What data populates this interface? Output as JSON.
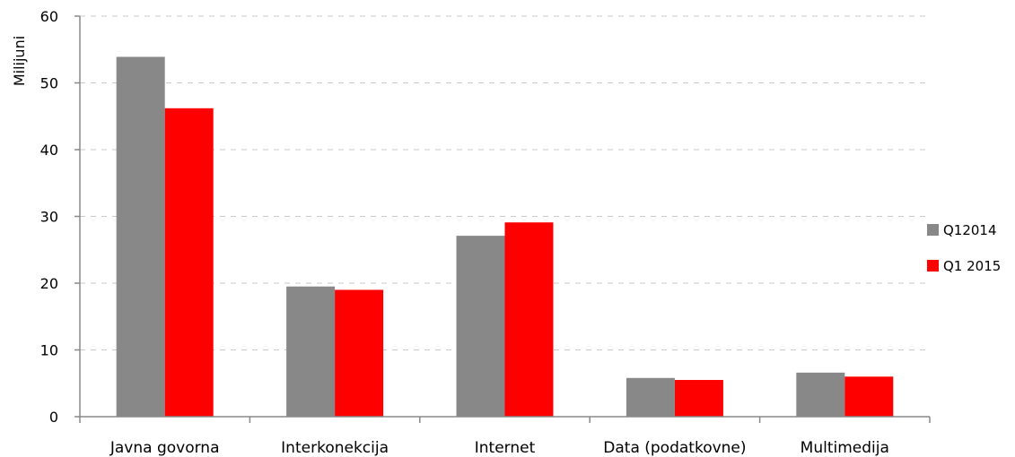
{
  "chart_data": {
    "type": "bar",
    "categories": [
      "Javna govorna",
      "Interkonekcija",
      "Internet",
      "Data (podatkovne)",
      "Multimedija"
    ],
    "series": [
      {
        "name": "Q12014",
        "values": [
          53.9,
          19.5,
          27.1,
          5.8,
          6.6
        ],
        "color": "#888888"
      },
      {
        "name": "Q1 2015",
        "values": [
          46.2,
          19.0,
          29.1,
          5.5,
          6.0
        ],
        "color": "#ff0000"
      }
    ],
    "title": "",
    "xlabel": "",
    "ylabel": "Milijuni",
    "ylim": [
      0,
      60
    ],
    "yticks": [
      "0",
      "10",
      "20",
      "30",
      "40",
      "50",
      "60"
    ],
    "grid": true,
    "legend_position": "right"
  }
}
